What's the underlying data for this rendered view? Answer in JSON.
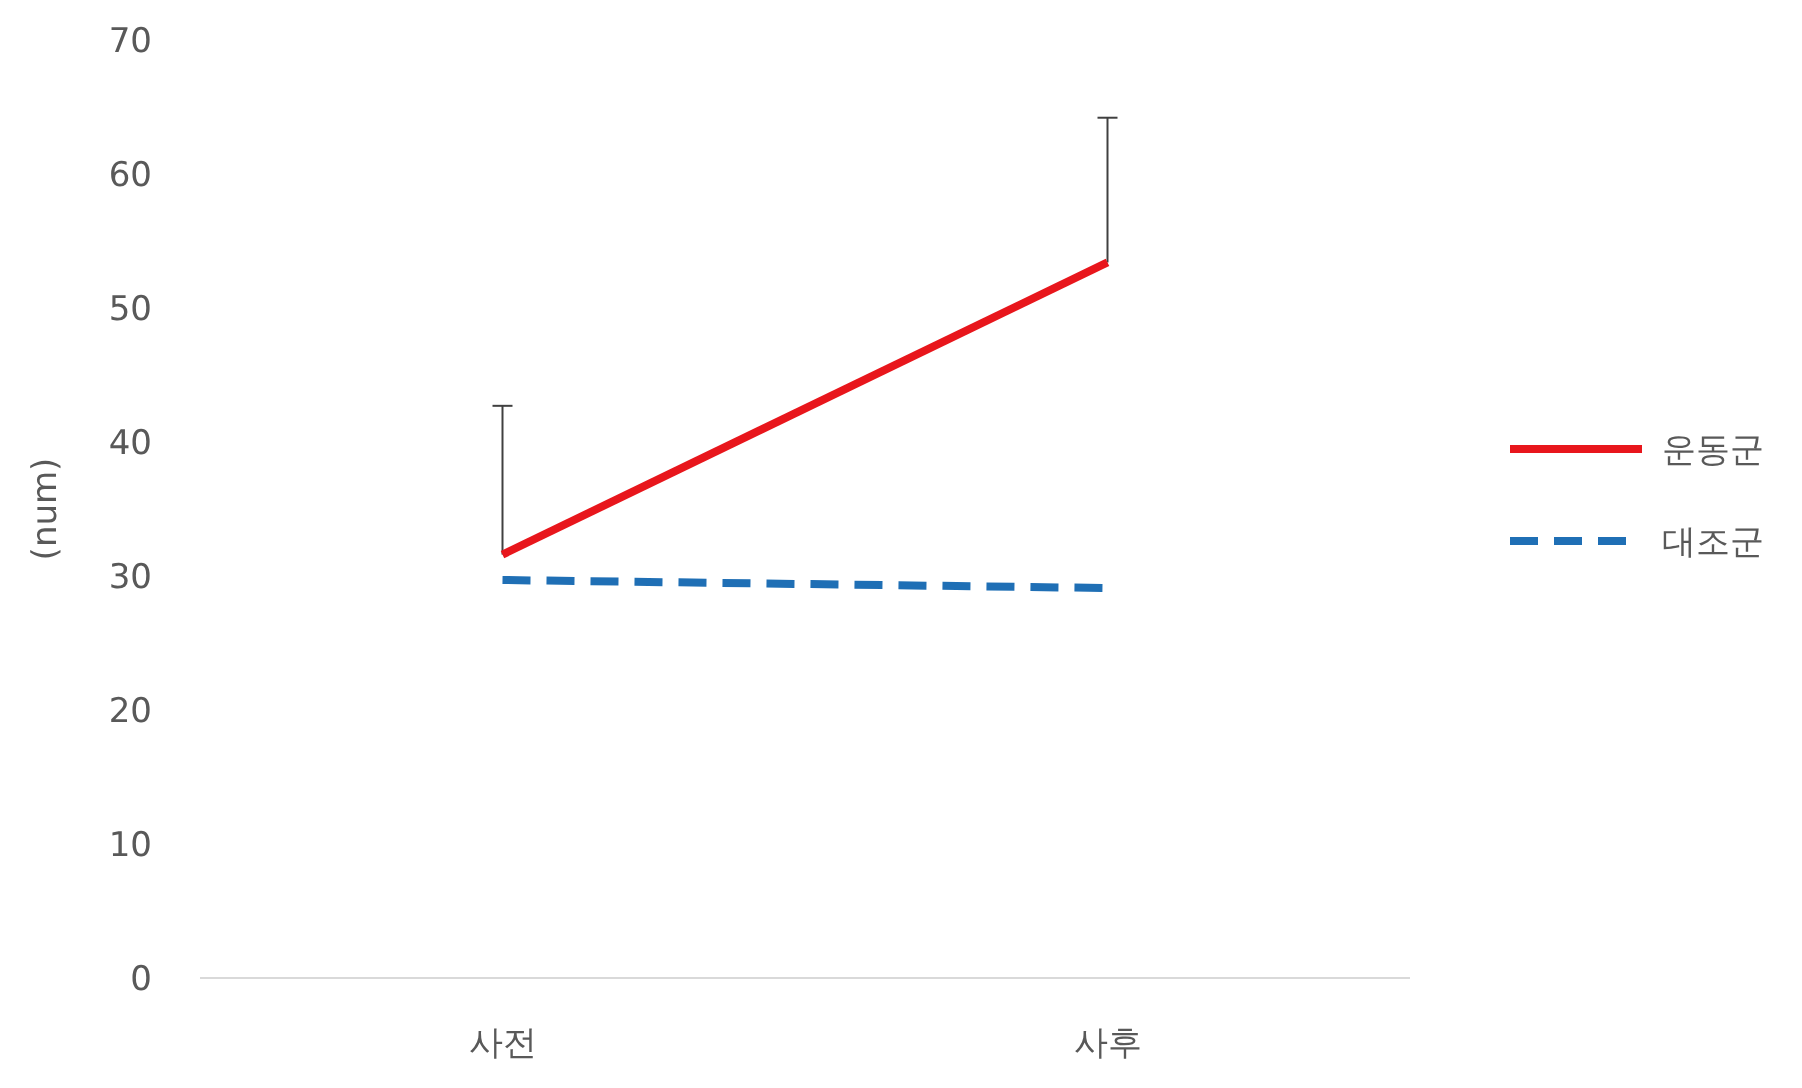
{
  "chart_data": {
    "type": "line",
    "ylabel": "(num)",
    "categories": [
      "사전",
      "사후"
    ],
    "series": [
      {
        "name": "운동군",
        "color": "#e8161c",
        "values": [
          31.6,
          53.4
        ],
        "errors": [
          [
            31.6,
            42.7
          ],
          [
            53.4,
            64.2
          ]
        ],
        "line_style": "solid"
      },
      {
        "name": "대조군",
        "color": "#1f6fb5",
        "values": [
          29.7,
          29.1
        ],
        "line_style": "dashed"
      }
    ],
    "ylim": [
      0,
      70
    ],
    "yticks": [
      0,
      10,
      20,
      30,
      40,
      50,
      60,
      70
    ],
    "grid": false,
    "legend": "right",
    "marker": "none"
  }
}
